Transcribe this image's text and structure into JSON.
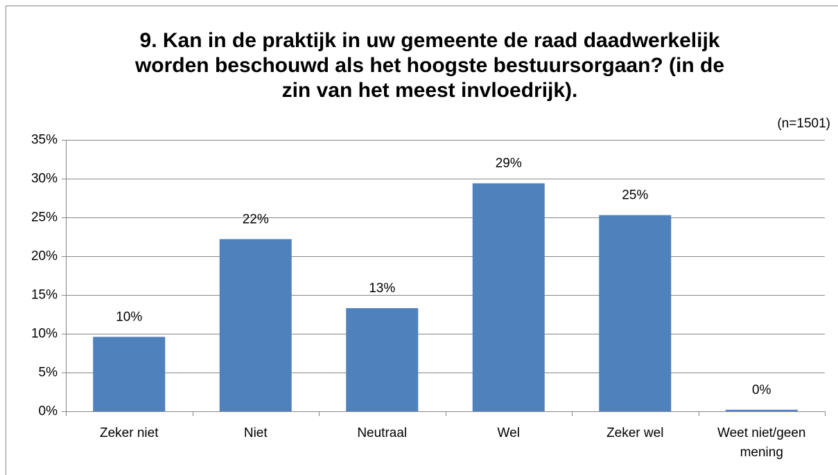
{
  "chart_data": {
    "type": "bar",
    "title_lines": [
      "9. Kan in de praktijk in uw gemeente de raad daadwerkelijk",
      "worden beschouwd als het hoogste bestuursorgaan? (in de",
      "zin van het meest invloedrijk)."
    ],
    "subtitle": "(n=1501)",
    "categories": [
      "Zeker niet",
      "Niet",
      "Neutraal",
      "Wel",
      "Zeker wel",
      "Weet niet/geen mening"
    ],
    "values": [
      9.6,
      22.2,
      13.3,
      29.4,
      25.3,
      0.2
    ],
    "value_labels": [
      "10%",
      "22%",
      "13%",
      "29%",
      "25%",
      "0%"
    ],
    "color": "#4f81bd",
    "ylim": [
      0,
      35
    ],
    "yticks": [
      {
        "value": 0,
        "label": "0%"
      },
      {
        "value": 5,
        "label": "5%"
      },
      {
        "value": 10,
        "label": "10%"
      },
      {
        "value": 15,
        "label": "15%"
      },
      {
        "value": 20,
        "label": "20%"
      },
      {
        "value": 25,
        "label": "25%"
      },
      {
        "value": 30,
        "label": "30%"
      },
      {
        "value": 35,
        "label": "35%"
      }
    ],
    "grid": true
  }
}
